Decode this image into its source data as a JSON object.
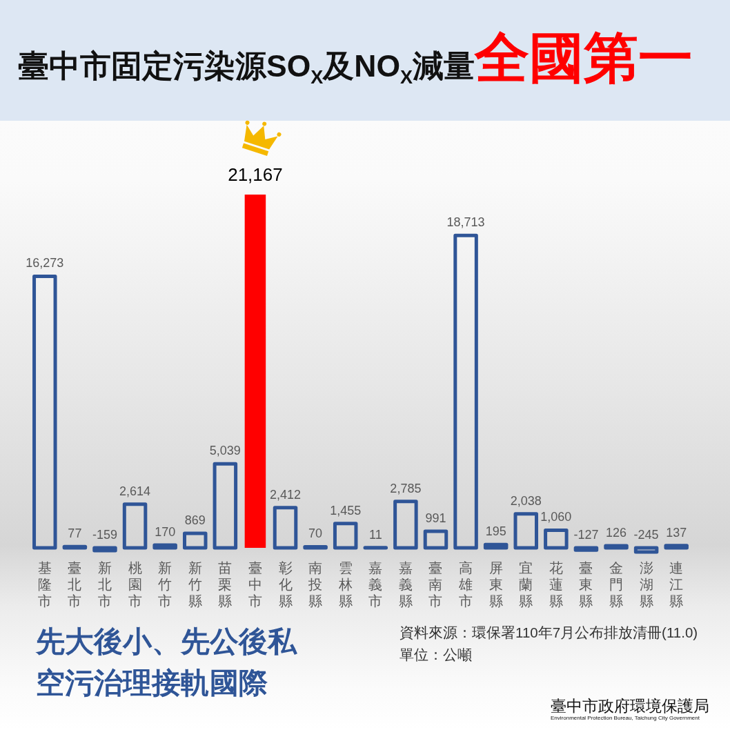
{
  "chart_data": {
    "type": "bar",
    "title": "臺中市固定污染源SO$_{X}$及NO$_{X}$減量全國第一",
    "categories": [
      "基隆市",
      "臺北市",
      "新北市",
      "桃園市",
      "新竹市",
      "新竹縣",
      "苗栗縣",
      "臺中市",
      "彰化縣",
      "南投縣",
      "雲林縣",
      "嘉義市",
      "嘉義縣",
      "臺南市",
      "高雄市",
      "屏東縣",
      "宜蘭縣",
      "花蓮縣",
      "臺東縣",
      "金門縣",
      "澎湖縣",
      "連江縣"
    ],
    "values": [
      16273,
      77,
      -159,
      2614,
      170,
      869,
      5039,
      21167,
      2412,
      70,
      1455,
      11,
      2785,
      991,
      18713,
      195,
      2038,
      1060,
      -127,
      126,
      -245,
      137
    ],
    "value_labels": [
      "16,273",
      "77",
      "-159",
      "2,614",
      "170",
      "869",
      "5,039",
      "21,167",
      "2,412",
      "70",
      "1,455",
      "11",
      "2,785",
      "991",
      "18,713",
      "195",
      "2,038",
      "1,060",
      "-127",
      "126",
      "-245",
      "137"
    ],
    "color": "#2f5597",
    "colors": [
      "#2f5597",
      "#2f5597",
      "#2f5597",
      "#2f5597",
      "#2f5597",
      "#2f5597",
      "#2f5597",
      "#ff0000",
      "#2f5597",
      "#2f5597",
      "#2f5597",
      "#2f5597",
      "#2f5597",
      "#2f5597",
      "#2f5597",
      "#2f5597",
      "#2f5597",
      "#2f5597",
      "#2f5597",
      "#2f5597",
      "#2f5597",
      "#2f5597"
    ],
    "annotations": [
      "先大後小、先公後私",
      "空污治理接軌國際",
      "資料來源：環保署110年7月公布排放清冊(11.0)",
      "單位：公噸",
      "臺中市政府環境保護局",
      "Environmental Protection Bureau, Taichung City Government"
    ]
  }
}
